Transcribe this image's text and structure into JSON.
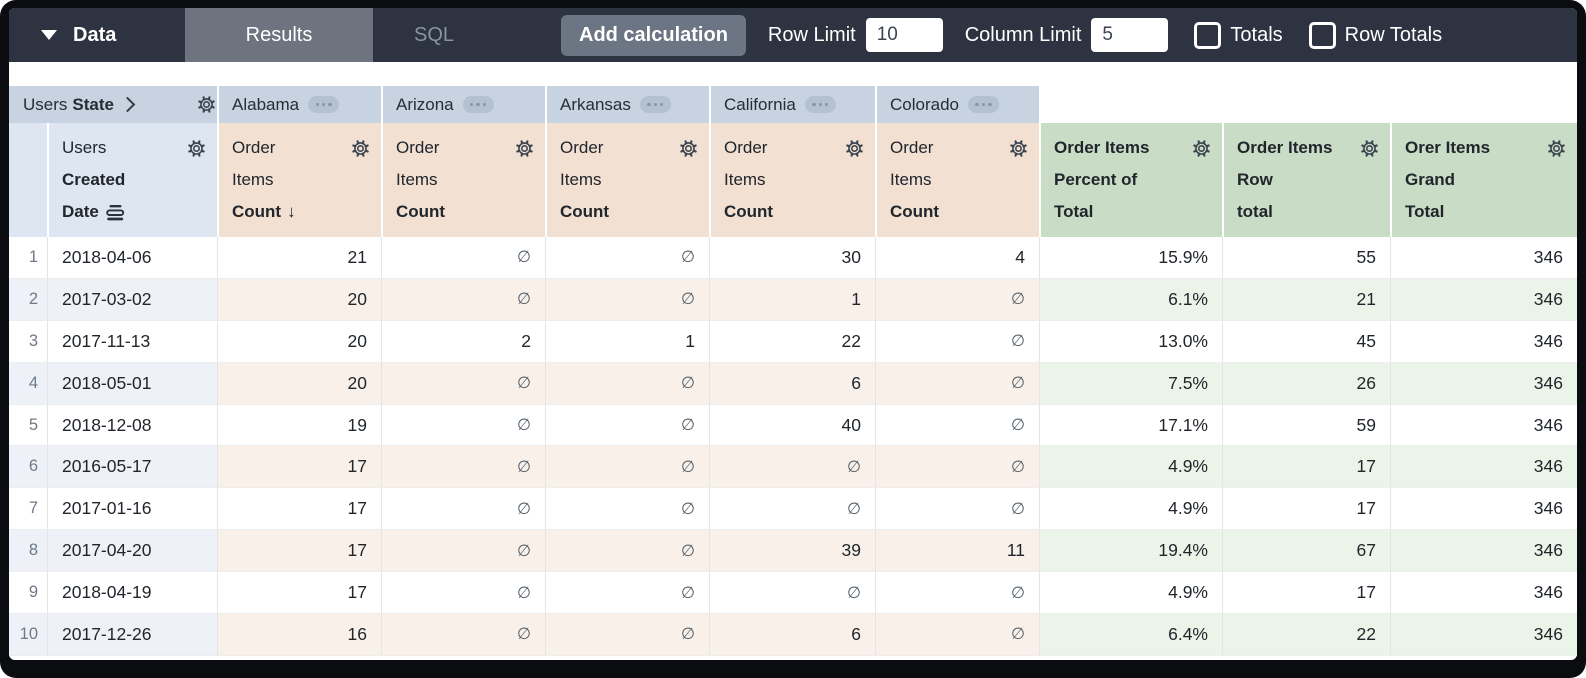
{
  "toolbar": {
    "data_label": "Data",
    "tabs": [
      {
        "label": "Results",
        "active": true
      },
      {
        "label": "SQL",
        "active": false
      }
    ],
    "add_calculation_label": "Add calculation",
    "row_limit_label": "Row Limit",
    "row_limit_value": "10",
    "column_limit_label": "Column Limit",
    "column_limit_value": "5",
    "totals_label": "Totals",
    "totals_checked": false,
    "row_totals_label": "Row Totals",
    "row_totals_checked": false
  },
  "pivot": {
    "dimension_view": "Users",
    "dimension_field": "State",
    "values": [
      "Alabama",
      "Arizona",
      "Arkansas",
      "California",
      "Colorado"
    ]
  },
  "row_dimension": {
    "view": "Users",
    "field_lines": [
      "Created",
      "Date"
    ]
  },
  "measure": {
    "view_lines": [
      "Order",
      "Items"
    ],
    "field": "Count",
    "sorted_desc_on_first": true
  },
  "calc_columns": [
    {
      "lines": [
        "Order Items",
        "Percent of",
        "Total"
      ]
    },
    {
      "lines": [
        "Order Items",
        "Row",
        "total"
      ]
    },
    {
      "lines": [
        "Orer Items",
        "Grand",
        "Total"
      ]
    }
  ],
  "null_symbol": "∅",
  "rows": [
    {
      "num": "1",
      "date": "2018-04-06",
      "values": [
        "21",
        "∅",
        "∅",
        "30",
        "4"
      ],
      "pct": "15.9%",
      "row_total": "55",
      "grand_total": "346"
    },
    {
      "num": "2",
      "date": "2017-03-02",
      "values": [
        "20",
        "∅",
        "∅",
        "1",
        "∅"
      ],
      "pct": "6.1%",
      "row_total": "21",
      "grand_total": "346"
    },
    {
      "num": "3",
      "date": "2017-11-13",
      "values": [
        "20",
        "2",
        "1",
        "22",
        "∅"
      ],
      "pct": "13.0%",
      "row_total": "45",
      "grand_total": "346"
    },
    {
      "num": "4",
      "date": "2018-05-01",
      "values": [
        "20",
        "∅",
        "∅",
        "6",
        "∅"
      ],
      "pct": "7.5%",
      "row_total": "26",
      "grand_total": "346"
    },
    {
      "num": "5",
      "date": "2018-12-08",
      "values": [
        "19",
        "∅",
        "∅",
        "40",
        "∅"
      ],
      "pct": "17.1%",
      "row_total": "59",
      "grand_total": "346"
    },
    {
      "num": "6",
      "date": "2016-05-17",
      "values": [
        "17",
        "∅",
        "∅",
        "∅",
        "∅"
      ],
      "pct": "4.9%",
      "row_total": "17",
      "grand_total": "346"
    },
    {
      "num": "7",
      "date": "2017-01-16",
      "values": [
        "17",
        "∅",
        "∅",
        "∅",
        "∅"
      ],
      "pct": "4.9%",
      "row_total": "17",
      "grand_total": "346"
    },
    {
      "num": "8",
      "date": "2017-04-20",
      "values": [
        "17",
        "∅",
        "∅",
        "39",
        "11"
      ],
      "pct": "19.4%",
      "row_total": "67",
      "grand_total": "346"
    },
    {
      "num": "9",
      "date": "2018-04-19",
      "values": [
        "17",
        "∅",
        "∅",
        "∅",
        "∅"
      ],
      "pct": "4.9%",
      "row_total": "17",
      "grand_total": "346"
    },
    {
      "num": "10",
      "date": "2017-12-26",
      "values": [
        "16",
        "∅",
        "∅",
        "6",
        "∅"
      ],
      "pct": "6.4%",
      "row_total": "22",
      "grand_total": "346"
    }
  ],
  "colors": {
    "topbar_bg": "#2d3340",
    "results_tab_bg": "#6d7480",
    "pivot_header_bg": "#c7d3e0",
    "dimension_header_bg": "#dde6f1",
    "measure_header_bg": "#f2e0d2",
    "calc_header_bg": "#c9dcc5",
    "even_row_blue": "#eef2f8",
    "even_row_peach": "#f8f0e9",
    "even_row_green": "#ebf4e9"
  }
}
